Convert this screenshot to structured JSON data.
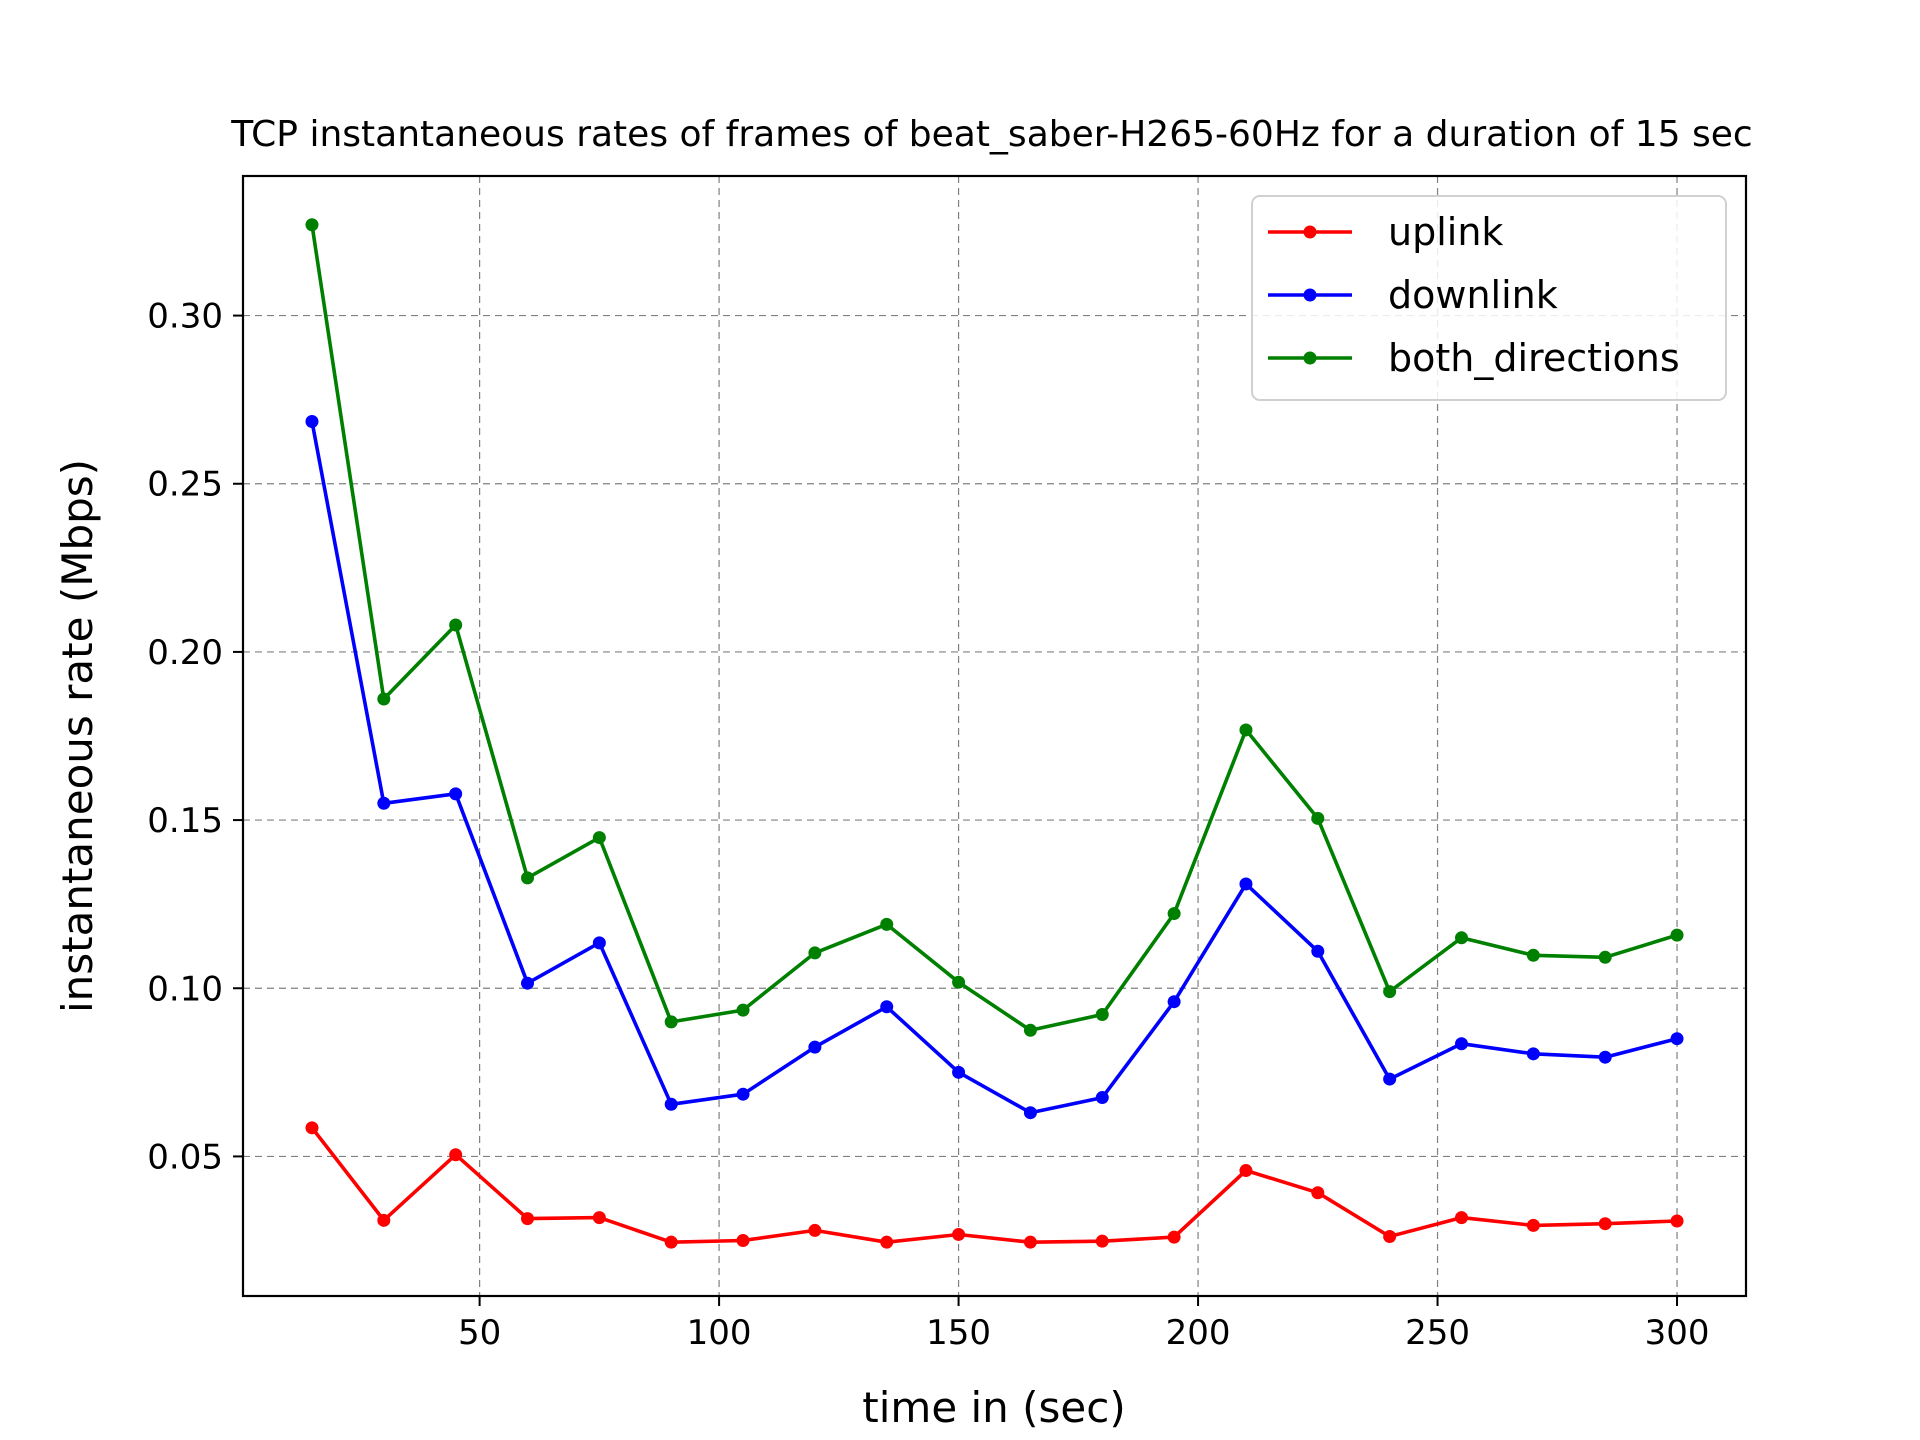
{
  "chart_data": {
    "type": "line",
    "title": "TCP instantaneous rates of frames of beat_saber-H265-60Hz for a duration of 15 sec",
    "xlabel": "time in (sec)",
    "ylabel": "instantaneous rate (Mbps)",
    "xlim": [
      0.6,
      314.4
    ],
    "ylim": [
      0.0085,
      0.3415
    ],
    "x_ticks": [
      50,
      100,
      150,
      200,
      250,
      300
    ],
    "x_tick_labels": [
      "50",
      "100",
      "150",
      "200",
      "250",
      "300"
    ],
    "y_ticks": [
      0.05,
      0.1,
      0.15,
      0.2,
      0.25,
      0.3
    ],
    "y_tick_labels": [
      "0.05",
      "0.10",
      "0.15",
      "0.20",
      "0.25",
      "0.30"
    ],
    "grid": true,
    "legend_position": "top-right",
    "x": [
      15,
      30,
      45,
      60,
      75,
      90,
      105,
      120,
      135,
      150,
      165,
      180,
      195,
      210,
      225,
      240,
      255,
      270,
      285,
      300
    ],
    "series": [
      {
        "name": "uplink",
        "color": "#ff0000",
        "values": [
          0.0585,
          0.031,
          0.0505,
          0.0315,
          0.0318,
          0.0245,
          0.025,
          0.028,
          0.0245,
          0.0268,
          0.0245,
          0.0248,
          0.026,
          0.0458,
          0.0392,
          0.0262,
          0.0318,
          0.0295,
          0.03,
          0.0308
        ]
      },
      {
        "name": "downlink",
        "color": "#0000ff",
        "values": [
          0.2685,
          0.155,
          0.1578,
          0.1015,
          0.1135,
          0.0655,
          0.0685,
          0.0825,
          0.0945,
          0.075,
          0.063,
          0.0675,
          0.096,
          0.131,
          0.111,
          0.073,
          0.0835,
          0.0805,
          0.0795,
          0.085
        ]
      },
      {
        "name": "both_directions",
        "color": "#008000",
        "values": [
          0.327,
          0.186,
          0.208,
          0.1328,
          0.1448,
          0.09,
          0.0935,
          0.1105,
          0.119,
          0.1018,
          0.0875,
          0.0922,
          0.1222,
          0.1768,
          0.1505,
          0.099,
          0.115,
          0.1098,
          0.1092,
          0.1158
        ]
      }
    ]
  }
}
